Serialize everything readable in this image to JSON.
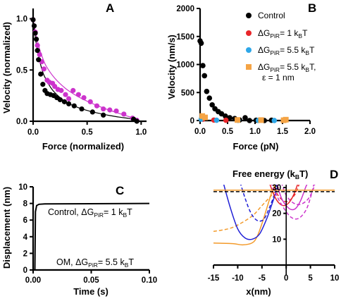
{
  "chart_data": [
    {
      "panel": "A",
      "type": "scatter",
      "xlabel": "Force (normalized)",
      "ylabel": "Velocity (normalized)",
      "xlim": [
        0,
        1.05
      ],
      "ylim": [
        0,
        1.1
      ],
      "xticks": [
        "0.0",
        "0.5",
        "1.0"
      ],
      "yticks": [
        "0.0",
        "0.5",
        "1.0"
      ],
      "series": [
        {
          "color": "#000000",
          "points": [
            [
              0.0,
              0.99
            ],
            [
              0.01,
              0.93
            ],
            [
              0.02,
              0.86
            ],
            [
              0.03,
              0.8
            ],
            [
              0.04,
              0.69
            ],
            [
              0.05,
              0.6
            ],
            [
              0.07,
              0.46
            ],
            [
              0.09,
              0.36
            ],
            [
              0.11,
              0.3
            ],
            [
              0.13,
              0.27
            ],
            [
              0.16,
              0.26
            ],
            [
              0.19,
              0.25
            ],
            [
              0.22,
              0.23
            ],
            [
              0.25,
              0.21
            ],
            [
              0.29,
              0.19
            ],
            [
              0.33,
              0.17
            ],
            [
              0.38,
              0.15
            ],
            [
              0.45,
              0.12
            ],
            [
              0.55,
              0.09
            ],
            [
              0.65,
              0.06
            ],
            [
              0.93,
              0.02
            ],
            [
              0.96,
              0.0
            ]
          ],
          "fit": [
            [
              0.0,
              1.0
            ],
            [
              0.02,
              0.82
            ],
            [
              0.04,
              0.69
            ],
            [
              0.07,
              0.55
            ],
            [
              0.1,
              0.45
            ],
            [
              0.15,
              0.35
            ],
            [
              0.2,
              0.28
            ],
            [
              0.3,
              0.19
            ],
            [
              0.4,
              0.14
            ],
            [
              0.5,
              0.105
            ],
            [
              0.6,
              0.08
            ],
            [
              0.7,
              0.058
            ],
            [
              0.8,
              0.04
            ],
            [
              0.9,
              0.025
            ],
            [
              1.0,
              0.0
            ]
          ]
        },
        {
          "color": "#cc33cc",
          "points": [
            [
              0.0,
              0.99
            ],
            [
              0.02,
              0.87
            ],
            [
              0.04,
              0.74
            ],
            [
              0.06,
              0.65
            ],
            [
              0.08,
              0.58
            ],
            [
              0.1,
              0.51
            ],
            [
              0.13,
              0.4
            ],
            [
              0.15,
              0.38
            ],
            [
              0.18,
              0.37
            ],
            [
              0.2,
              0.34
            ],
            [
              0.23,
              0.31
            ],
            [
              0.26,
              0.3
            ],
            [
              0.3,
              0.26
            ],
            [
              0.33,
              0.22
            ],
            [
              0.37,
              0.3
            ],
            [
              0.42,
              0.26
            ],
            [
              0.47,
              0.23
            ],
            [
              0.53,
              0.19
            ],
            [
              0.59,
              0.15
            ],
            [
              0.65,
              0.12
            ],
            [
              0.71,
              0.11
            ],
            [
              0.77,
              0.1
            ],
            [
              0.84,
              0.07
            ],
            [
              0.92,
              0.03
            ],
            [
              0.96,
              0.01
            ]
          ],
          "fit": [
            [
              0.0,
              1.0
            ],
            [
              0.02,
              0.88
            ],
            [
              0.05,
              0.74
            ],
            [
              0.08,
              0.64
            ],
            [
              0.12,
              0.54
            ],
            [
              0.2,
              0.42
            ],
            [
              0.3,
              0.32
            ],
            [
              0.4,
              0.25
            ],
            [
              0.5,
              0.195
            ],
            [
              0.6,
              0.15
            ],
            [
              0.7,
              0.11
            ],
            [
              0.8,
              0.075
            ],
            [
              0.9,
              0.04
            ],
            [
              0.97,
              0.01
            ]
          ]
        }
      ]
    },
    {
      "panel": "B",
      "type": "scatter",
      "xlabel": "Force (pN)",
      "ylabel": "Velocity (nm/s)",
      "xlim": [
        0,
        2.0
      ],
      "ylim": [
        0,
        2000
      ],
      "xticks": [
        "0.0",
        "0.5",
        "1.0",
        "1.5",
        "2.0"
      ],
      "yticks": [
        "0",
        "500",
        "1000",
        "1500",
        "2000"
      ],
      "legend_position": "top-right",
      "series": [
        {
          "name": "Control",
          "color": "#000000",
          "points": [
            [
              0.0,
              1420
            ],
            [
              0.02,
              1380
            ],
            [
              0.05,
              980
            ],
            [
              0.08,
              800
            ],
            [
              0.12,
              520
            ],
            [
              0.17,
              400
            ],
            [
              0.22,
              280
            ],
            [
              0.27,
              210
            ],
            [
              0.33,
              160
            ],
            [
              0.39,
              120
            ],
            [
              0.46,
              80
            ],
            [
              0.54,
              50
            ],
            [
              0.63,
              35
            ],
            [
              0.72,
              10
            ],
            [
              0.82,
              50
            ],
            [
              0.9,
              0
            ],
            [
              1.02,
              5
            ],
            [
              1.17,
              0
            ],
            [
              1.3,
              5
            ]
          ]
        },
        {
          "name": "ΔGPiR= 1 kBT",
          "name_main": "ΔG",
          "name_sub": "PiR",
          "name_tail": "= 1 k",
          "name_sub2": "B",
          "name_end": "T",
          "color": "#e8262a",
          "points": [
            [
              0.05,
              25
            ],
            [
              0.25,
              8
            ],
            [
              0.47,
              5
            ]
          ]
        },
        {
          "name": "ΔGPiR= 5.5 kBT",
          "name_main": "ΔG",
          "name_sub": "PiR",
          "name_tail": "= 5.5 k",
          "name_sub2": "B",
          "name_end": "T",
          "color": "#2ea7e8",
          "points": [
            [
              0.02,
              25
            ],
            [
              0.3,
              5
            ],
            [
              0.69,
              3
            ],
            [
              1.06,
              2
            ],
            [
              1.35,
              1
            ]
          ]
        },
        {
          "name": "ΔGPiR= 5.5 kBT, ε = 1 nm",
          "name_main": "ΔG",
          "name_sub": "PiR",
          "name_tail": "= 5.5 k",
          "name_sub2": "B",
          "name_end": "T,",
          "name_line2": "ε = 1 nm",
          "color": "#f5a445",
          "marker": "square",
          "points": [
            [
              0.04,
              80
            ],
            [
              0.09,
              55
            ],
            [
              0.68,
              10
            ],
            [
              1.11,
              8
            ],
            [
              1.52,
              5
            ],
            [
              1.56,
              15
            ]
          ]
        }
      ]
    },
    {
      "panel": "C",
      "type": "line",
      "xlabel": "Time (s)",
      "ylabel": "Displacement (nm)",
      "xlim": [
        0,
        0.1
      ],
      "ylim": [
        0,
        10
      ],
      "xticks": [
        "0.00",
        "0.05",
        "0.10"
      ],
      "yticks": [
        "0",
        "2",
        "4",
        "6",
        "8",
        "10"
      ],
      "series": [
        {
          "color": "#000000",
          "points": [
            [
              0.0,
              0.0
            ],
            [
              0.0015,
              0.0
            ],
            [
              0.002,
              7.0
            ],
            [
              0.003,
              7.75
            ],
            [
              0.005,
              7.9
            ],
            [
              0.01,
              7.95
            ],
            [
              0.1,
              8.0
            ]
          ]
        },
        {
          "color": "#000000",
          "points": [
            [
              0.0,
              0.0
            ],
            [
              0.1,
              0.02
            ]
          ]
        }
      ],
      "annotations": [
        {
          "text": "Control, ΔGPiR= 1 kBT",
          "main": "Control, ΔG",
          "sub": "PiR",
          "tail": "= 1 k",
          "sub2": "B",
          "end": "T"
        },
        {
          "text": "OM, ΔGPiR= 5.5 kBT",
          "main": "OM, ΔG",
          "sub": "PiR",
          "tail": "= 5.5 k",
          "sub2": "B",
          "end": "T"
        }
      ]
    },
    {
      "panel": "D",
      "type": "line",
      "title": "Free energy (kBT)",
      "title_main": "Free energy (k",
      "title_sub": "B",
      "title_end": "T)",
      "xlabel": "x(nm)",
      "xlim": [
        -15,
        10
      ],
      "ylim": [
        0,
        30
      ],
      "xticks": [
        "-15",
        "-10",
        "-5",
        "0",
        "5",
        "10"
      ],
      "yticks": [
        "10",
        "20",
        "30"
      ],
      "series": [
        {
          "color": "#f39a2a",
          "dash": false,
          "points": [
            [
              -15,
              8.5
            ],
            [
              -11,
              8.3
            ],
            [
              -9,
              7.8
            ],
            [
              -7,
              8.6
            ],
            [
              -6,
              11
            ],
            [
              -5,
              16
            ],
            [
              -4,
              22
            ],
            [
              -3,
              28
            ],
            [
              -2.3,
              31
            ]
          ]
        },
        {
          "color": "#f39a2a",
          "dash": true,
          "points": [
            [
              -15,
              13
            ],
            [
              -12,
              14
            ],
            [
              -10,
              15.5
            ],
            [
              -7,
              19
            ],
            [
              -5,
              23
            ],
            [
              -3,
              27
            ],
            [
              -1.5,
              30
            ]
          ]
        },
        {
          "color": "#1f1fd6",
          "dash": false,
          "points": [
            [
              -13,
              32
            ],
            [
              -11.5,
              22
            ],
            [
              -10,
              14
            ],
            [
              -8.5,
              10.5
            ],
            [
              -7,
              10
            ],
            [
              -5.5,
              12
            ],
            [
              -4,
              18
            ],
            [
              -2.5,
              26
            ],
            [
              -1.5,
              32
            ]
          ]
        },
        {
          "color": "#1f1fd6",
          "dash": true,
          "points": [
            [
              -9.5,
              32
            ],
            [
              -8.5,
              26
            ],
            [
              -7.5,
              21
            ],
            [
              -6.5,
              18
            ],
            [
              -5.5,
              17
            ],
            [
              -4.5,
              18
            ],
            [
              -3.5,
              22
            ],
            [
              -2.5,
              27
            ],
            [
              -1.8,
              32
            ]
          ]
        },
        {
          "color": "#e8262a",
          "dash": false,
          "points": [
            [
              -3.5,
              32
            ],
            [
              -2.5,
              27
            ],
            [
              -1.5,
              24
            ],
            [
              -0.5,
              23
            ],
            [
              0.5,
              24
            ],
            [
              1.5,
              27
            ],
            [
              2.5,
              32
            ]
          ]
        },
        {
          "color": "#e8262a",
          "dash": true,
          "points": [
            [
              -2.8,
              32
            ],
            [
              -2,
              28
            ],
            [
              -1,
              25.5
            ],
            [
              0,
              24.5
            ],
            [
              1,
              25.5
            ],
            [
              2,
              28
            ],
            [
              2.8,
              32
            ]
          ]
        },
        {
          "color": "#cc33cc",
          "dash": false,
          "points": [
            [
              -2,
              32
            ],
            [
              -1,
              26
            ],
            [
              0,
              23
            ],
            [
              1,
              21.5
            ],
            [
              2,
              22
            ],
            [
              3,
              25
            ],
            [
              4,
              30
            ],
            [
              4.5,
              32
            ]
          ]
        },
        {
          "color": "#cc33cc",
          "dash": true,
          "points": [
            [
              -3.2,
              32
            ],
            [
              -2,
              27
            ],
            [
              -0.5,
              22
            ],
            [
              1,
              18.5
            ],
            [
              2.5,
              18
            ],
            [
              4,
              21
            ],
            [
              5,
              26
            ],
            [
              5.8,
              32
            ]
          ]
        },
        {
          "color": "#cc33cc",
          "dash": true,
          "points": [
            [
              -1,
              32
            ],
            [
              0,
              27
            ],
            [
              1.5,
              24
            ],
            [
              3,
              23.5
            ],
            [
              4.5,
              25.5
            ],
            [
              5.5,
              29
            ],
            [
              6,
              32
            ]
          ]
        },
        {
          "color": "#f39a2a",
          "dash": false,
          "points": [
            [
              -15,
              29.0
            ],
            [
              10,
              29.0
            ]
          ]
        },
        {
          "color": "#000000",
          "dash": true,
          "points": [
            [
              -15,
              28.4
            ],
            [
              10,
              28.4
            ]
          ]
        }
      ]
    }
  ],
  "panel_labels": {
    "A": "A",
    "B": "B",
    "C": "C",
    "D": "D"
  }
}
